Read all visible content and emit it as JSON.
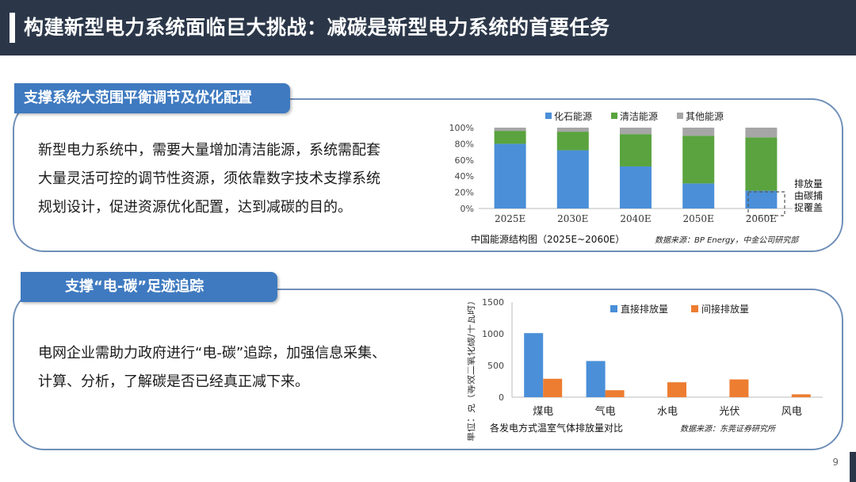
{
  "header": {
    "title": "构建新型电力系统面临巨大挑战：减碳是新型电力系统的首要任务"
  },
  "section1": {
    "tab_label": "支撑系统大范围平衡调节及优化配置",
    "body_lines": [
      "新型电力系统中，需要大量增加清洁能源，系统需配套",
      "大量灵活可控的调节性资源，须依靠数字技术支撑系统",
      "规划设计，促进资源优化配置，达到减碳的目的。"
    ]
  },
  "section2": {
    "tab_label": "支撑“电-碳”足迹追踪",
    "body_lines": [
      "电网企业需助力政府进行“电-碳”追踪，加强信息采集、",
      "计算、分析，了解碳是否已经真正减下来。"
    ]
  },
  "page_number": "9",
  "chart_data": [
    {
      "type": "bar",
      "stacked": true,
      "categories": [
        "2025E",
        "2030E",
        "2040E",
        "2050E",
        "2060E"
      ],
      "series": [
        {
          "name": "化石能源",
          "color": "#4a8fd8",
          "values": [
            80,
            72,
            52,
            31,
            22
          ]
        },
        {
          "name": "清洁能源",
          "color": "#5aa33f",
          "values": [
            16,
            23,
            40,
            59,
            66
          ]
        },
        {
          "name": "其他能源",
          "color": "#a6a6a6",
          "values": [
            4,
            5,
            8,
            10,
            12
          ]
        }
      ],
      "y_ticks": [
        "0%",
        "20%",
        "40%",
        "60%",
        "80%",
        "100%"
      ],
      "ylim": [
        0,
        100
      ],
      "legend_position": "top",
      "caption": "中国能源结构图（2025E~2060E）",
      "source": "数据来源：BP Energy，中金公司研究部",
      "annotation": [
        "排放量",
        "由碳捕",
        "捉覆盖"
      ]
    },
    {
      "type": "bar",
      "categories": [
        "煤电",
        "气电",
        "水电",
        "光伏",
        "风电"
      ],
      "series": [
        {
          "name": "直接排放量",
          "color": "#4a8fd8",
          "values": [
            1010,
            570,
            0,
            0,
            0
          ]
        },
        {
          "name": "间接排放量",
          "color": "#ed7d31",
          "values": [
            290,
            110,
            235,
            280,
            45
          ]
        }
      ],
      "y_ticks": [
        "0",
        "500",
        "1000",
        "1500"
      ],
      "ylim": [
        0,
        1500
      ],
      "ylabel": "单位：克（等效二氧化碳/千瓦时）",
      "legend_position": "top-right",
      "caption": "各发电方式温室气体排放量对比",
      "source": "数据来源：东莞证券研究所"
    }
  ]
}
